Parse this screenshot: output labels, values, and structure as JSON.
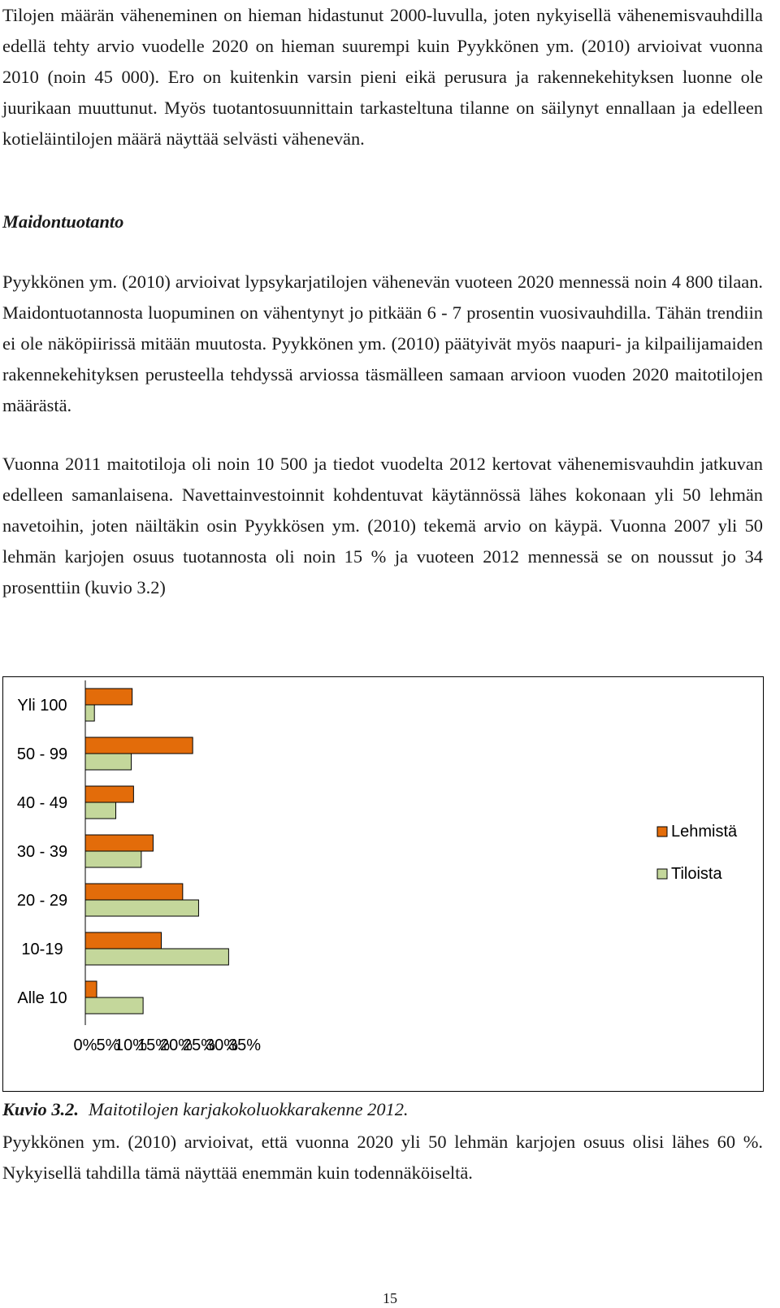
{
  "paragraphs": {
    "p1": "Tilojen määrän väheneminen on hieman hidastunut 2000-luvulla, joten nykyisellä vä­henemisvauhdilla edellä tehty arvio vuodelle 2020 on hieman suurempi kuin Pyykkönen ym. (2010) arvioivat vuonna 2010 (noin 45 000). Ero on kuitenkin varsin pieni eikä pe­rusura ja rakennekehityksen luonne ole juurikaan muuttunut. Myös tuotantosuunnit­tain tarkasteltuna tilanne on säilynyt ennallaan ja edelleen kotieläintilojen määrä näyttää selvästi vähenevän.",
    "heading": "Maidontuotanto",
    "p2": "Pyykkönen ym. (2010) arvioivat lypsykarjatilojen vähenevän vuoteen 2020 mennessä noin 4 800 tilaan. Maidontuotannosta luopuminen on vähentynyt jo pitkään 6 - 7 pro­sentin vuosivauhdilla. Tähän trendiin ei ole näköpiirissä mitään muutosta. Pyykkönen ym. (2010) päätyivät myös naapuri- ja kilpailijamaiden rakennekehityksen perusteella tehdyssä arviossa täsmälleen samaan arvioon vuoden 2020 maitotilojen määrästä.",
    "p3": "Vuonna 2011 maitotiloja oli noin 10 500 ja tiedot vuodelta 2012 kertovat vähenemis­vauhdin jatkuvan edelleen samanlaisena. Navettainvestoinnit kohdentuvat käytännössä lähes kokonaan yli 50 lehmän navetoihin, joten näiltäkin osin Pyykkösen ym. (2010) tekemä arvio on käypä. Vuonna 2007 yli 50 lehmän karjojen osuus tuotannosta oli noin 15 % ja vuoteen 2012 mennessä se on noussut jo 34 prosenttiin (kuvio 3.2)",
    "p4": "Pyykkönen ym. (2010) arvioivat, että vuonna 2020 yli 50 lehmän karjojen osuus olisi lähes 60 %. Nykyisellä tahdilla tämä näyttää enemmän kuin todennäköiseltä."
  },
  "caption": {
    "number": "Kuvio 3.2.",
    "text": "Maitotilojen karjakokoluokkarakenne 2012."
  },
  "page_number": "15",
  "colors": {
    "lehmista": "#E36C0A",
    "tiloista": "#C4D79B",
    "bar_edge": "#000000"
  },
  "chart_data": {
    "type": "bar",
    "orientation": "horizontal",
    "categories": [
      "Yli 100",
      "50 - 99",
      "40 - 49",
      "30 - 39",
      "20 - 29",
      "10-19",
      "Alle 10"
    ],
    "series": [
      {
        "name": "Lehmistä",
        "values": [
          10.3,
          23.6,
          10.6,
          14.9,
          21.4,
          16.7,
          2.5
        ]
      },
      {
        "name": "Tiloista",
        "values": [
          2.0,
          10.1,
          6.7,
          12.3,
          24.9,
          31.5,
          12.7
        ]
      }
    ],
    "xlim": [
      0,
      35
    ],
    "x_ticks": [
      "0%",
      "5%",
      "10%",
      "15%",
      "20%",
      "25%",
      "30%",
      "35%"
    ],
    "legend_position": "right",
    "grid": false,
    "title": "",
    "xlabel": "",
    "ylabel": ""
  }
}
